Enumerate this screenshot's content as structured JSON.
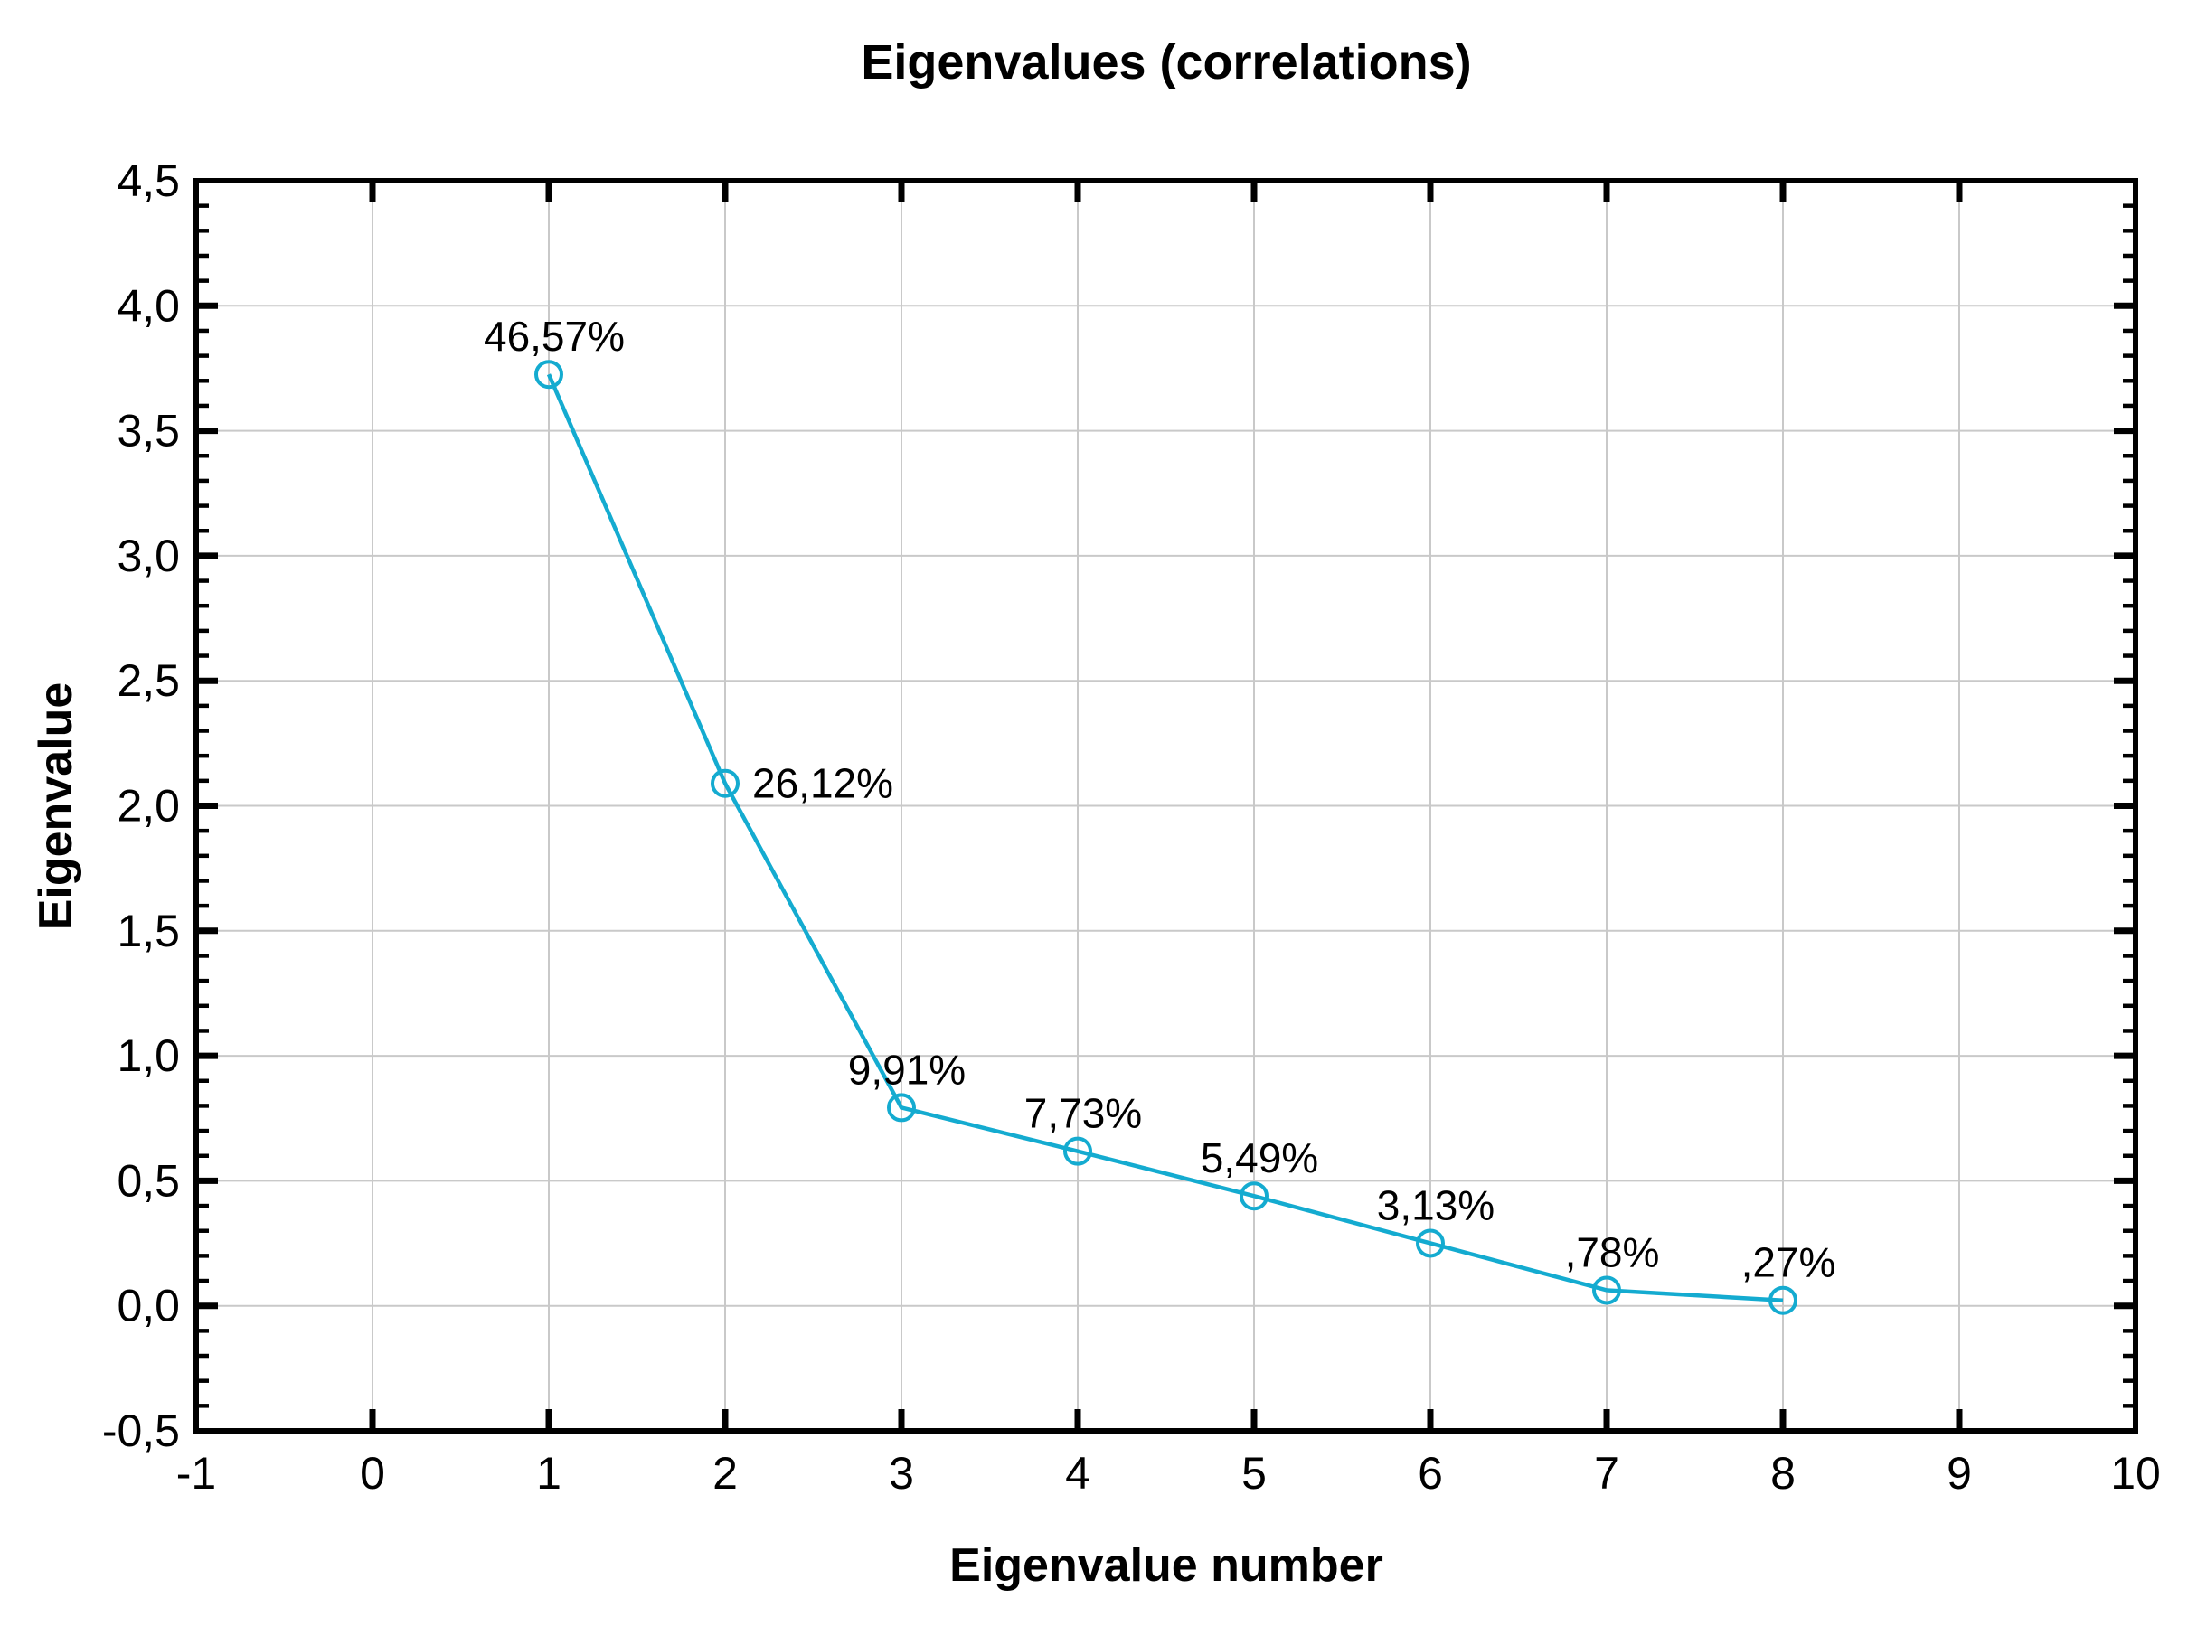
{
  "chart_data": {
    "type": "line",
    "title": "Eigenvalues (correlations)",
    "xlabel": "Eigenvalue number",
    "ylabel": "Eigenvalue",
    "x": [
      1,
      2,
      3,
      4,
      5,
      6,
      7,
      8
    ],
    "eigenvalues": [
      3.7256,
      2.0896,
      0.7928,
      0.6184,
      0.4392,
      0.2504,
      0.0624,
      0.0216
    ],
    "percent_of_variance": [
      46.57,
      26.12,
      9.91,
      7.73,
      5.49,
      3.13,
      0.78,
      0.27
    ],
    "point_labels": [
      "46,57%",
      "26,12%",
      "9,91%",
      "7,73%",
      "5,49%",
      "3,13%",
      ",78%",
      ",27%"
    ],
    "label_placement": [
      "above",
      "right",
      "above",
      "above",
      "above",
      "above",
      "above",
      "above"
    ],
    "xlim": [
      -1,
      10
    ],
    "ylim": [
      -0.5,
      4.5
    ],
    "x_ticks": {
      "values": [
        -1,
        0,
        1,
        2,
        3,
        4,
        5,
        6,
        7,
        8,
        9,
        10
      ],
      "labels": [
        "-1",
        "0",
        "1",
        "2",
        "3",
        "4",
        "5",
        "6",
        "7",
        "8",
        "9",
        "10"
      ]
    },
    "y_ticks": {
      "values": [
        -0.5,
        0,
        0.5,
        1,
        1.5,
        2,
        2.5,
        3,
        3.5,
        4,
        4.5
      ],
      "labels": [
        "-0,5",
        "0,0",
        "0,5",
        "1,0",
        "1,5",
        "2,0",
        "2,5",
        "3,0",
        "3,5",
        "4,0",
        "4,5"
      ]
    },
    "y_minor_step": 0.1,
    "grid": true,
    "legend_position": "none",
    "decimal_separator": ",",
    "colors": {
      "series": "#14abd0",
      "grid": "#c9c9c9",
      "axis": "#000000",
      "text": "#000000",
      "background": "#ffffff"
    }
  }
}
